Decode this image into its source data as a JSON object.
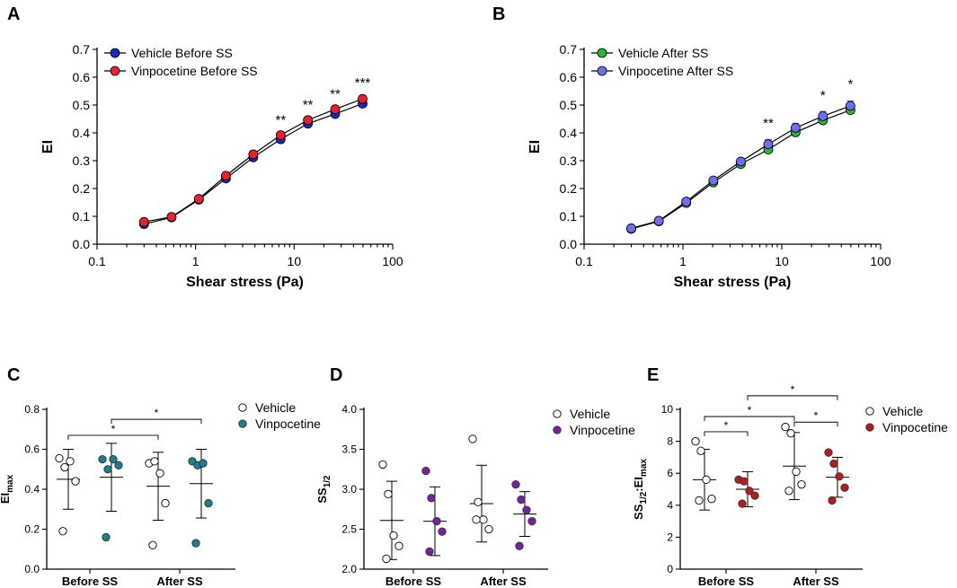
{
  "chart_data": [
    {
      "id": "A",
      "panel_label": "A",
      "type": "line",
      "xscale": "log",
      "xlim": [
        0.1,
        100
      ],
      "xticks": [
        "0.1",
        "1",
        "10",
        "100"
      ],
      "ylim": [
        0,
        0.7
      ],
      "yticks": [
        "0.0",
        "0.1",
        "0.2",
        "0.3",
        "0.4",
        "0.5",
        "0.6",
        "0.7"
      ],
      "xlabel": "Shear stress (Pa)",
      "ylabel": "EI",
      "legend_position": "top-left",
      "x": [
        0.3,
        0.57,
        1.08,
        2.03,
        3.85,
        7.3,
        13.8,
        26.1,
        49.5
      ],
      "series": [
        {
          "name": "Vehicle Before SS",
          "color": "#1f26c9",
          "values": [
            0.072,
            0.096,
            0.16,
            0.236,
            0.312,
            0.377,
            0.433,
            0.468,
            0.505
          ],
          "err": [
            0.005,
            0.005,
            0.006,
            0.006,
            0.007,
            0.008,
            0.009,
            0.009,
            0.01
          ]
        },
        {
          "name": "Vinpocetine Before SS",
          "color": "#e8222a",
          "values": [
            0.08,
            0.098,
            0.163,
            0.246,
            0.323,
            0.392,
            0.446,
            0.485,
            0.522
          ],
          "err": [
            0.005,
            0.005,
            0.006,
            0.007,
            0.008,
            0.01,
            0.011,
            0.011,
            0.011
          ]
        }
      ],
      "annotations": [
        {
          "x": 7.3,
          "y": 0.43,
          "text": "**"
        },
        {
          "x": 13.8,
          "y": 0.485,
          "text": "**"
        },
        {
          "x": 26.1,
          "y": 0.525,
          "text": "**"
        },
        {
          "x": 49.5,
          "y": 0.565,
          "text": "***"
        }
      ]
    },
    {
      "id": "B",
      "panel_label": "B",
      "type": "line",
      "xscale": "log",
      "xlim": [
        0.1,
        100
      ],
      "xticks": [
        "0.1",
        "1",
        "10",
        "100"
      ],
      "ylim": [
        0,
        0.7
      ],
      "yticks": [
        "0.0",
        "0.1",
        "0.2",
        "0.3",
        "0.4",
        "0.5",
        "0.6",
        "0.7"
      ],
      "xlabel": "Shear stress (Pa)",
      "ylabel": "EI",
      "legend_position": "top-left",
      "x": [
        0.3,
        0.57,
        1.08,
        2.03,
        3.85,
        7.3,
        13.8,
        26.1,
        49.5
      ],
      "series": [
        {
          "name": "Vehicle After SS",
          "color": "#28b83a",
          "values": [
            0.055,
            0.082,
            0.148,
            0.222,
            0.288,
            0.34,
            0.402,
            0.445,
            0.482
          ],
          "err": [
            0.004,
            0.005,
            0.005,
            0.006,
            0.007,
            0.008,
            0.009,
            0.01,
            0.011
          ]
        },
        {
          "name": "Vinpocetine After SS",
          "color": "#6b6ff0",
          "values": [
            0.057,
            0.084,
            0.153,
            0.229,
            0.297,
            0.359,
            0.418,
            0.46,
            0.497
          ],
          "err": [
            0.004,
            0.005,
            0.006,
            0.007,
            0.011,
            0.017,
            0.016,
            0.017,
            0.018
          ]
        }
      ],
      "annotations": [
        {
          "x": 7.3,
          "y": 0.42,
          "text": "**"
        },
        {
          "x": 26.1,
          "y": 0.52,
          "text": "*"
        },
        {
          "x": 49.5,
          "y": 0.56,
          "text": "*"
        }
      ]
    },
    {
      "id": "C",
      "panel_label": "C",
      "type": "scatter",
      "categories": [
        "Before SS",
        "After SS"
      ],
      "ylim": [
        0,
        0.8
      ],
      "yticks": [
        "0.0",
        "0.2",
        "0.4",
        "0.6",
        "0.8"
      ],
      "ylabel": "EI",
      "ylabel_sub": "max",
      "legend_position": "top-right",
      "groups": [
        {
          "name": "Vehicle",
          "filled": false,
          "color": "#1a7f8e",
          "points": [
            [
              0.555,
              0.51,
              0.54,
              0.44,
              0.19
            ],
            [
              0.53,
              0.54,
              0.48,
              0.33,
              0.12
            ]
          ],
          "mean": [
            0.45,
            0.415
          ],
          "sd": [
            0.15,
            0.17
          ]
        },
        {
          "name": "Vinpocetine",
          "filled": true,
          "color": "#1a7f8e",
          "points": [
            [
              0.55,
              0.5,
              0.55,
              0.52,
              0.16
            ],
            [
              0.54,
              0.52,
              0.53,
              0.33,
              0.13
            ]
          ],
          "mean": [
            0.46,
            0.428
          ],
          "sd": [
            0.17,
            0.172
          ]
        }
      ],
      "brackets": [
        {
          "from": [
            0,
            0
          ],
          "to": [
            1,
            0
          ],
          "y": 0.67,
          "text": "*"
        },
        {
          "from": [
            0,
            1
          ],
          "to": [
            1,
            1
          ],
          "y": 0.75,
          "text": "*"
        }
      ]
    },
    {
      "id": "D",
      "panel_label": "D",
      "type": "scatter",
      "categories": [
        "Before SS",
        "After SS"
      ],
      "ylim": [
        2.0,
        4.0
      ],
      "yticks": [
        "2.0",
        "2.5",
        "3.0",
        "3.5",
        "4.0"
      ],
      "ylabel": "SS",
      "ylabel_sub": "1/2",
      "legend_position": "top-right",
      "groups": [
        {
          "name": "Vehicle",
          "filled": false,
          "color": "#7b1fa2",
          "points": [
            [
              3.31,
              2.94,
              2.42,
              2.29,
              2.13
            ],
            [
              3.63,
              2.84,
              2.62,
              2.5,
              2.62
            ]
          ],
          "mean": [
            2.61,
            2.82
          ],
          "sd": [
            0.49,
            0.48
          ]
        },
        {
          "name": "Vinpocetine",
          "filled": true,
          "color": "#7b1fa2",
          "points": [
            [
              3.23,
              2.89,
              2.6,
              2.47,
              2.22
            ],
            [
              3.06,
              2.87,
              2.74,
              2.6,
              2.29
            ]
          ],
          "mean": [
            2.6,
            2.69
          ],
          "sd": [
            0.43,
            0.28
          ]
        }
      ],
      "brackets": []
    },
    {
      "id": "E",
      "panel_label": "E",
      "type": "scatter",
      "categories": [
        "Before SS",
        "After SS"
      ],
      "ylim": [
        0,
        10
      ],
      "yticks": [
        "0",
        "2",
        "4",
        "6",
        "8",
        "10"
      ],
      "ylabel": "SS",
      "ylabel_sub": "1/2",
      "ylabel_mid": ":EI",
      "ylabel_sub2": "max",
      "legend_position": "top-right",
      "groups": [
        {
          "name": "Vehicle",
          "filled": false,
          "color": "#b71c1c",
          "points": [
            [
              8.0,
              7.4,
              5.6,
              4.4,
              4.3
            ],
            [
              8.9,
              8.5,
              6.1,
              5.3,
              4.9
            ]
          ],
          "mean": [
            5.6,
            6.45
          ],
          "sd": [
            1.9,
            2.1
          ]
        },
        {
          "name": "Vinpocetine",
          "filled": true,
          "color": "#b71c1c",
          "points": [
            [
              5.6,
              5.5,
              4.9,
              4.6,
              4.1
            ],
            [
              7.3,
              6.6,
              5.8,
              5.1,
              4.3
            ]
          ],
          "mean": [
            5.0,
            5.75
          ],
          "sd": [
            1.1,
            1.25
          ]
        }
      ],
      "brackets": [
        {
          "from": [
            0,
            0
          ],
          "to": [
            0,
            1
          ],
          "y": 8.6,
          "text": "*"
        },
        {
          "from": [
            0,
            0
          ],
          "to": [
            1,
            0
          ],
          "y": 9.55,
          "text": "*"
        },
        {
          "from": [
            1,
            0
          ],
          "to": [
            1,
            1
          ],
          "y": 9.2,
          "text": "*"
        },
        {
          "from": [
            0,
            1
          ],
          "to": [
            1,
            1
          ],
          "y": 10.85,
          "text": "*"
        }
      ]
    }
  ]
}
